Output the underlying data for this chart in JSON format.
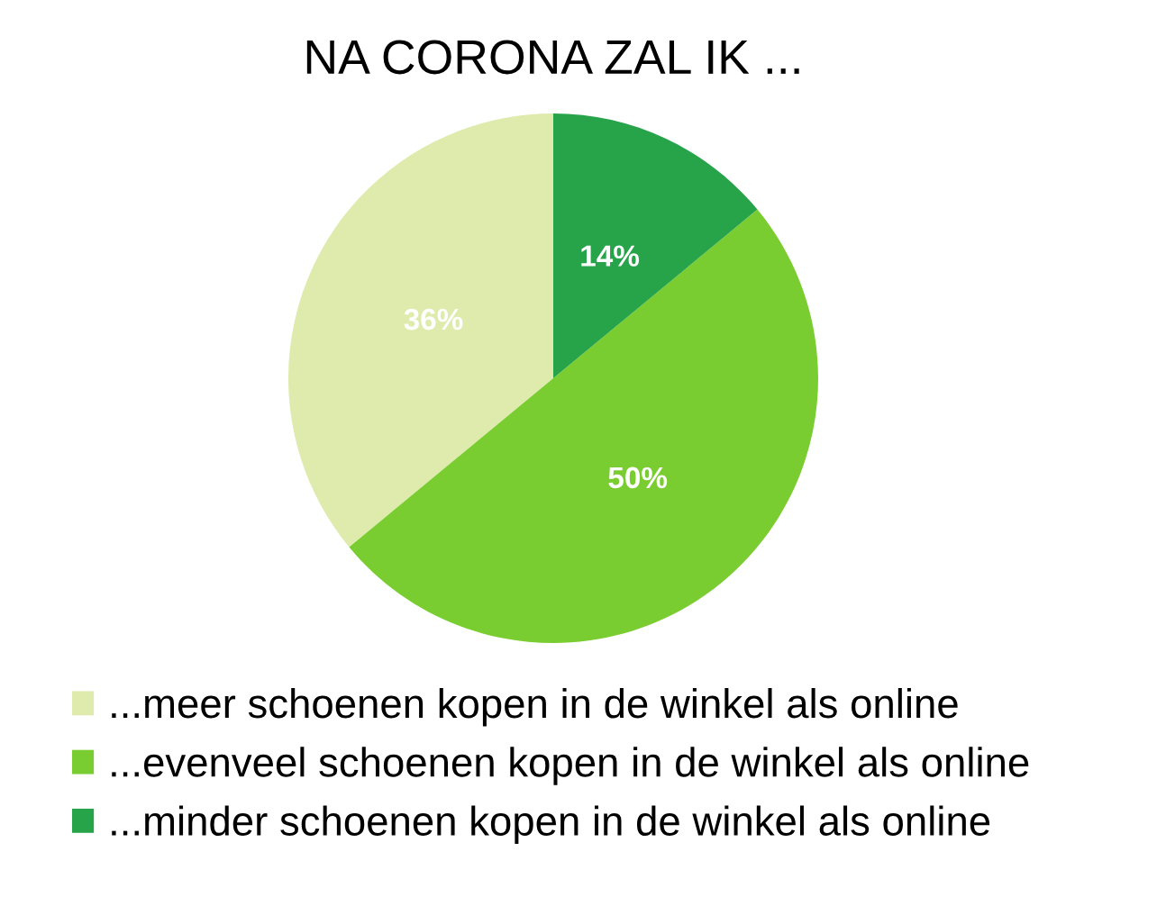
{
  "chart_data": {
    "type": "pie",
    "title": "NA CORONA ZAL IK ...",
    "categories": [
      "...meer schoenen kopen in de winkel als online",
      "...evenveel schoenen kopen in de winkel als online",
      "...minder schoenen kopen in de winkel als online"
    ],
    "values": [
      36,
      50,
      14
    ],
    "colors": [
      "#dfebad",
      "#7acd30",
      "#27a34a"
    ],
    "value_labels": [
      "36%",
      "50%",
      "14%"
    ],
    "legend": "bottom"
  }
}
